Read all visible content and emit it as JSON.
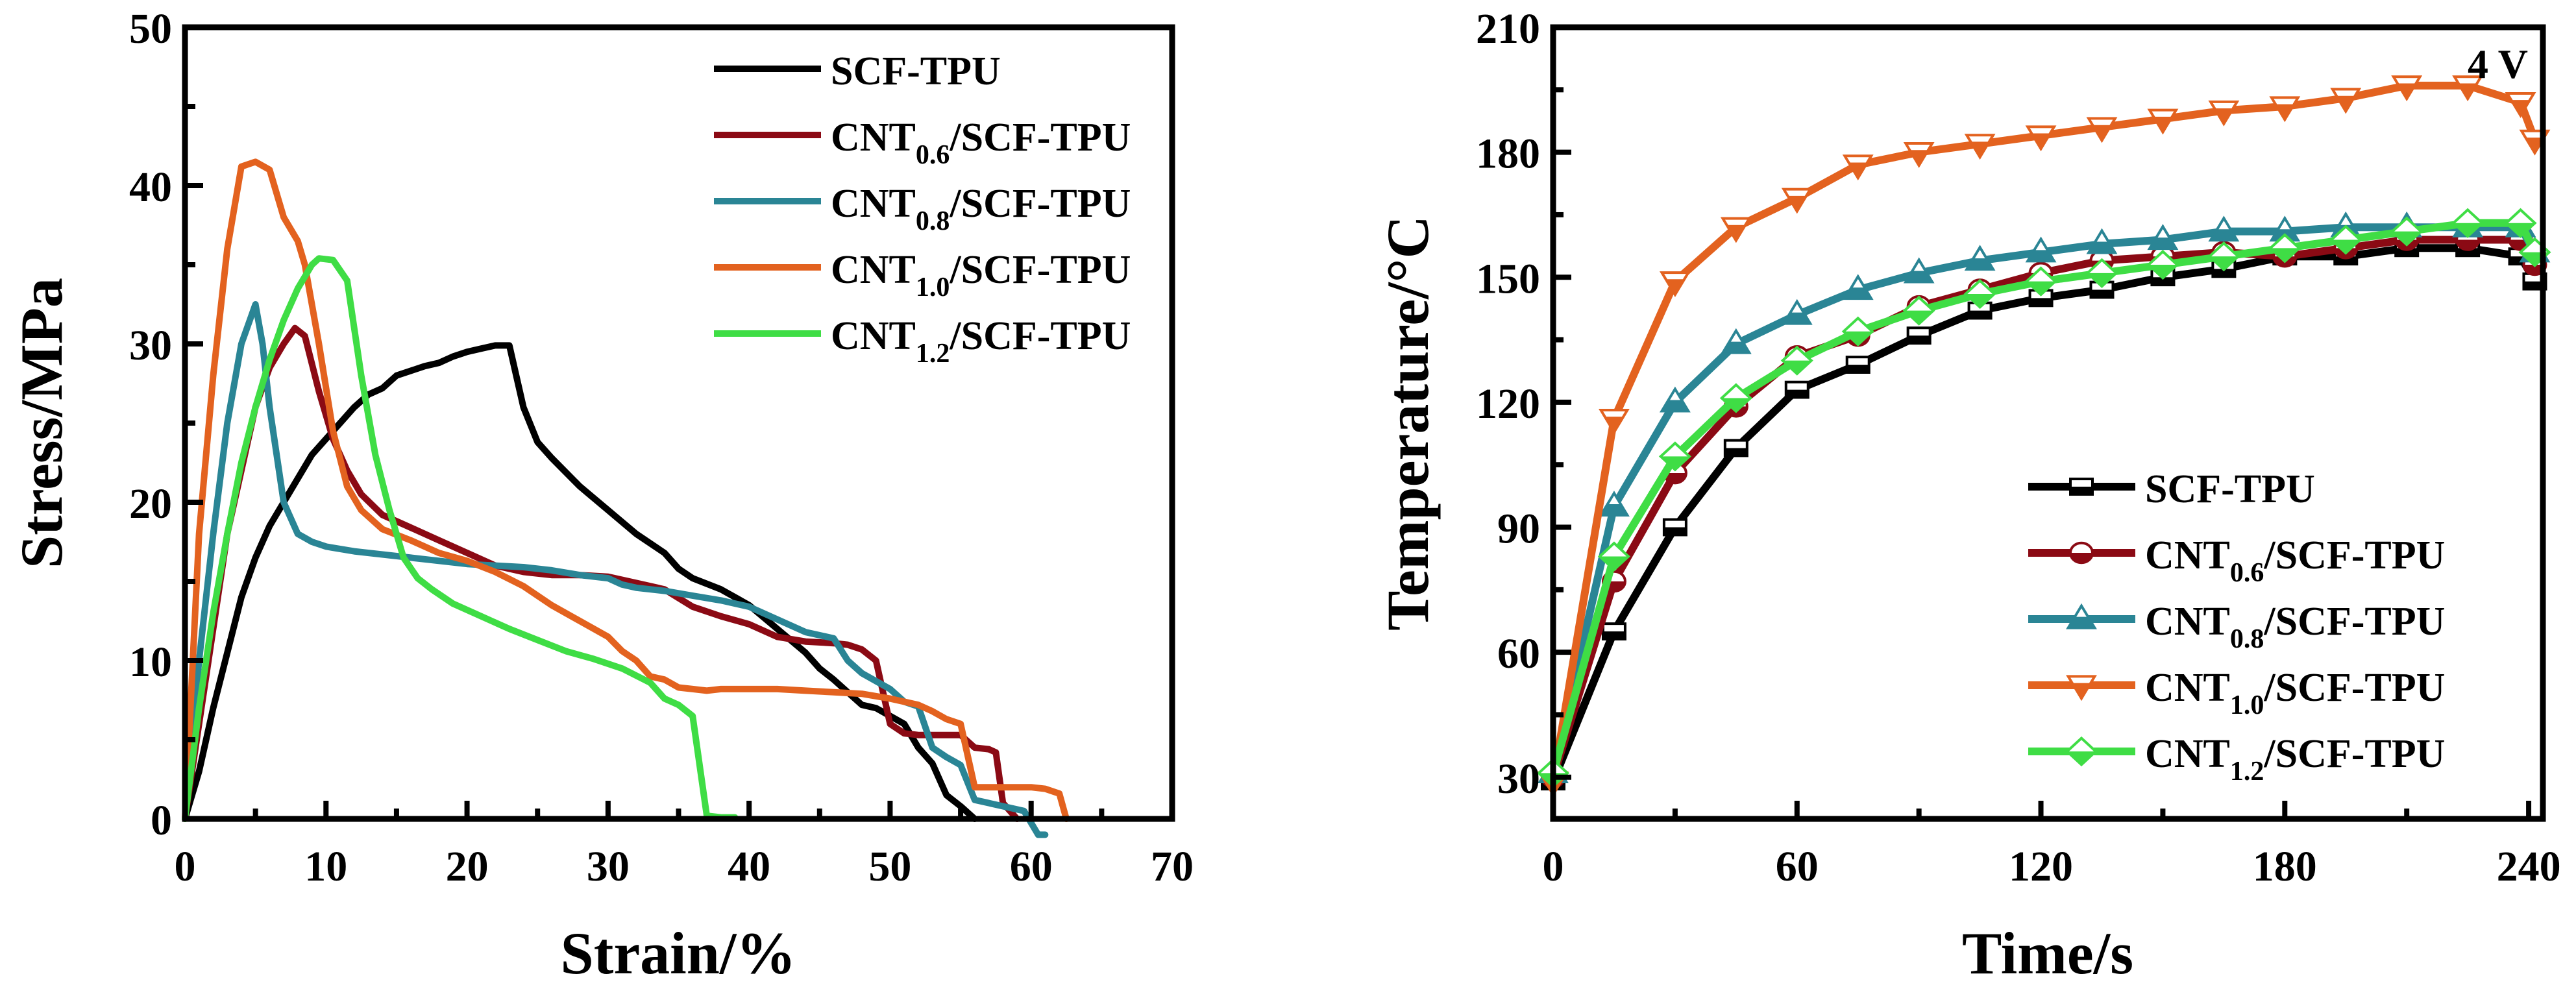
{
  "chart_data": [
    {
      "type": "line",
      "title": "",
      "xlabel": "Strain/%",
      "ylabel": "Stress/MPa",
      "xlim": [
        0,
        70
      ],
      "ylim": [
        0,
        50
      ],
      "xticks": [
        0,
        10,
        20,
        30,
        40,
        50,
        60,
        70
      ],
      "yticks": [
        0,
        10,
        20,
        30,
        40,
        50
      ],
      "grid": false,
      "legend_position": "top-right",
      "series": [
        {
          "name": "SCF-TPU",
          "base": "SCF-TPU",
          "sub": "",
          "suffix": "",
          "color": "#000000",
          "x": [
            0,
            1,
            2,
            3,
            4,
            5,
            6,
            7,
            8,
            9,
            10,
            11,
            12,
            13,
            14,
            15,
            16,
            17,
            18,
            19,
            20,
            21,
            22,
            23,
            24,
            25,
            26,
            28,
            30,
            32,
            34,
            35,
            36,
            38,
            40,
            42,
            44,
            45,
            46,
            47,
            48,
            49,
            50,
            51,
            52,
            53,
            54,
            55,
            56
          ],
          "y": [
            0,
            3,
            7,
            10.5,
            14,
            16.5,
            18.5,
            20,
            21.5,
            23,
            24,
            25,
            26,
            26.8,
            27.2,
            28,
            28.3,
            28.6,
            28.8,
            29.2,
            29.5,
            29.7,
            29.9,
            29.9,
            26,
            23.8,
            22.8,
            21,
            19.5,
            18,
            16.8,
            15.8,
            15.2,
            14.5,
            13.5,
            12,
            10.5,
            9.5,
            8.8,
            8,
            7.2,
            7,
            6.5,
            6,
            4.5,
            3.5,
            1.5,
            0.8,
            0
          ]
        },
        {
          "name": "CNT0.6/SCF-TPU",
          "base": "CNT",
          "sub": "0.6",
          "suffix": "/SCF-TPU",
          "color": "#8B0A14",
          "x": [
            0,
            1,
            2,
            3,
            4,
            5,
            6,
            7,
            7.8,
            8.5,
            9.5,
            10.5,
            11.5,
            12.5,
            14,
            16,
            18,
            20,
            22,
            24,
            26,
            28,
            30,
            32,
            34,
            36,
            38,
            40,
            42,
            44,
            46,
            47,
            48,
            49,
            50,
            51,
            52,
            53,
            54,
            55,
            56,
            57,
            57.5,
            58,
            59
          ],
          "y": [
            0,
            6,
            12,
            18,
            22,
            26,
            28.5,
            30,
            31,
            30.5,
            27,
            24,
            22,
            20.5,
            19.2,
            18.4,
            17.6,
            16.8,
            16,
            15.6,
            15.4,
            15.4,
            15.3,
            14.9,
            14.5,
            13.4,
            12.8,
            12.3,
            11.5,
            11.2,
            11.1,
            11,
            10.7,
            10,
            6,
            5.4,
            5.3,
            5.3,
            5.3,
            5.3,
            4.5,
            4.4,
            4.2,
            1,
            0
          ]
        },
        {
          "name": "CNT0.8/SCF-TPU",
          "base": "CNT",
          "sub": "0.8",
          "suffix": "/SCF-TPU",
          "color": "#2A8595",
          "x": [
            0,
            1,
            2,
            3,
            4,
            5,
            5.5,
            6,
            7,
            8,
            9,
            10,
            12,
            14,
            16,
            18,
            20,
            22,
            24,
            26,
            28,
            30,
            31,
            32,
            34,
            36,
            38,
            40,
            42,
            44,
            46,
            47,
            48,
            50,
            51,
            52,
            53,
            54,
            55,
            56,
            58,
            59.5,
            60.5,
            61
          ],
          "y": [
            0,
            10,
            18,
            25,
            30,
            32.5,
            30,
            26,
            20,
            18,
            17.5,
            17.2,
            16.9,
            16.7,
            16.5,
            16.3,
            16.1,
            16,
            15.9,
            15.7,
            15.4,
            15.2,
            14.8,
            14.6,
            14.4,
            14.1,
            13.8,
            13.4,
            12.6,
            11.8,
            11.4,
            10,
            9.2,
            8.2,
            7.4,
            7.1,
            4.5,
            3.9,
            3.4,
            1.2,
            0.8,
            0.5,
            -1,
            -1
          ]
        },
        {
          "name": "CNT1.0/SCF-TPU",
          "base": "CNT",
          "sub": "1.0",
          "suffix": "/SCF-TPU",
          "color": "#E3621F",
          "x": [
            0,
            1,
            2,
            3,
            4,
            5,
            6,
            7,
            8,
            8.5,
            9.5,
            10.5,
            11.5,
            12.5,
            14,
            16,
            18,
            20,
            22,
            24,
            26,
            28,
            30,
            31,
            32,
            33,
            34,
            35,
            36,
            37,
            38,
            40,
            42,
            44,
            46,
            48,
            50,
            52,
            53,
            54,
            55,
            56,
            58,
            60,
            61,
            62,
            62.5
          ],
          "y": [
            0,
            18,
            28,
            36,
            41.2,
            41.5,
            41,
            38,
            36.5,
            35,
            30,
            24.5,
            21,
            19.5,
            18.3,
            17.6,
            16.8,
            16.3,
            15.6,
            14.7,
            13.5,
            12.5,
            11.5,
            10.6,
            10,
            9,
            8.8,
            8.3,
            8.2,
            8.1,
            8.2,
            8.2,
            8.2,
            8.1,
            8,
            7.9,
            7.6,
            7.2,
            6.8,
            6.3,
            6,
            2,
            2,
            2,
            1.9,
            1.6,
            0
          ]
        },
        {
          "name": "CNT1.2/SCF-TPU",
          "base": "CNT",
          "sub": "1.2",
          "suffix": "/SCF-TPU",
          "color": "#3FDD45",
          "x": [
            0,
            1,
            2,
            3,
            4,
            5,
            6,
            7,
            8,
            9,
            9.5,
            10.5,
            11.5,
            12.5,
            13.5,
            14.5,
            15.5,
            16.5,
            17.5,
            19,
            21,
            23,
            25,
            27,
            29,
            31,
            33,
            34,
            35,
            36,
            37,
            38,
            39
          ],
          "y": [
            0,
            7,
            13,
            18,
            22.5,
            26,
            29,
            31.5,
            33.5,
            35,
            35.4,
            35.3,
            34,
            28,
            23,
            19.5,
            16.5,
            15.2,
            14.5,
            13.6,
            12.8,
            12,
            11.3,
            10.6,
            10.1,
            9.5,
            8.6,
            7.6,
            7.2,
            6.5,
            0.2,
            0.1,
            0.1
          ]
        }
      ]
    },
    {
      "type": "line",
      "title": "",
      "xlabel": "Time/s",
      "ylabel": "Temperature/°C",
      "xlim": [
        0,
        243.5
      ],
      "ylim": [
        20,
        210
      ],
      "xticks": [
        0,
        60,
        120,
        180,
        240
      ],
      "yticks": [
        30,
        60,
        90,
        120,
        150,
        180,
        210
      ],
      "grid": false,
      "legend_position": "bottom-right",
      "annotation": "4 V",
      "marker_interval_s": 15,
      "series": [
        {
          "name": "SCF-TPU",
          "base": "SCF-TPU",
          "sub": "",
          "suffix": "",
          "color": "#000000",
          "marker": "square",
          "x": [
            0,
            15,
            30,
            45,
            60,
            75,
            90,
            105,
            120,
            135,
            150,
            165,
            180,
            195,
            210,
            225,
            238,
            241.5
          ],
          "y": [
            29,
            65,
            90,
            109,
            123,
            129,
            136,
            142,
            145,
            147,
            150,
            152,
            155,
            155,
            157,
            157,
            155,
            149
          ]
        },
        {
          "name": "CNT0.6/SCF-TPU",
          "base": "CNT",
          "sub": "0.6",
          "suffix": "/SCF-TPU",
          "color": "#8B0A14",
          "marker": "circle",
          "x": [
            0,
            15,
            30,
            45,
            60,
            75,
            90,
            105,
            120,
            135,
            150,
            165,
            180,
            195,
            210,
            225,
            238,
            241.5
          ],
          "y": [
            30,
            77,
            103,
            119,
            131,
            136,
            143,
            147,
            151,
            154,
            155,
            156,
            155,
            157,
            159,
            159,
            159,
            153
          ]
        },
        {
          "name": "CNT0.8/SCF-TPU",
          "base": "CNT",
          "sub": "0.8",
          "suffix": "/SCF-TPU",
          "color": "#2A8595",
          "marker": "triangle-up",
          "x": [
            0,
            15,
            30,
            45,
            60,
            75,
            90,
            105,
            120,
            135,
            150,
            165,
            180,
            195,
            210,
            225,
            238,
            241.5
          ],
          "y": [
            31,
            95,
            120,
            134,
            141,
            147,
            151,
            154,
            156,
            158,
            159,
            161,
            161,
            162,
            162,
            162,
            162,
            156
          ]
        },
        {
          "name": "CNT1.0/SCF-TPU",
          "base": "CNT",
          "sub": "1.0",
          "suffix": "/SCF-TPU",
          "color": "#E3621F",
          "marker": "triangle-down",
          "x": [
            0,
            15,
            30,
            45,
            60,
            75,
            90,
            105,
            120,
            135,
            150,
            165,
            180,
            195,
            210,
            225,
            238,
            241.5
          ],
          "y": [
            29,
            116,
            149,
            162,
            169,
            177,
            180,
            182,
            184,
            186,
            188,
            190,
            191,
            193,
            196,
            196,
            192,
            183
          ]
        },
        {
          "name": "CNT1.2/SCF-TPU",
          "base": "CNT",
          "sub": "1.2",
          "suffix": "/SCF-TPU",
          "color": "#3FDD45",
          "marker": "diamond",
          "x": [
            0,
            15,
            30,
            45,
            60,
            75,
            90,
            105,
            120,
            135,
            150,
            165,
            180,
            195,
            210,
            225,
            238,
            241.5
          ],
          "y": [
            31,
            83,
            107,
            121,
            130,
            137,
            142,
            146,
            149,
            151,
            153,
            155,
            157,
            159,
            161,
            163,
            163,
            156
          ]
        }
      ]
    }
  ]
}
